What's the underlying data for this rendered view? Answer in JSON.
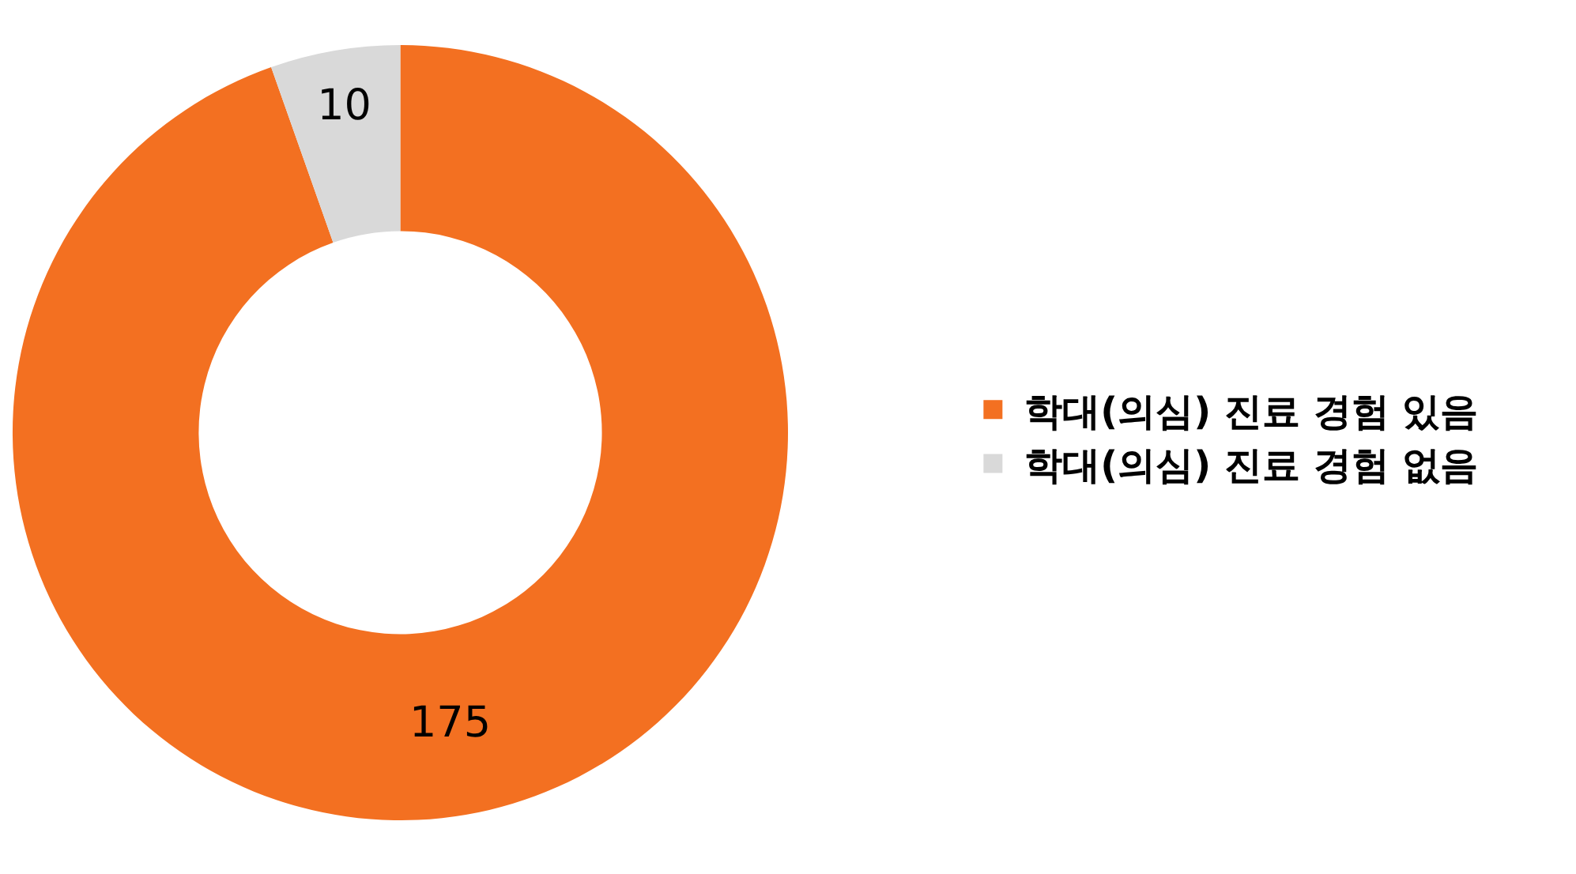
{
  "chart_data": {
    "type": "donut",
    "categories": [
      "학대(의심) 진료 경험 있음",
      "학대(의심) 진료 경험 없음"
    ],
    "values": [
      175,
      10
    ],
    "colors": [
      "#f37021",
      "#d9d9d9"
    ],
    "data_labels": true,
    "legend": "right"
  }
}
